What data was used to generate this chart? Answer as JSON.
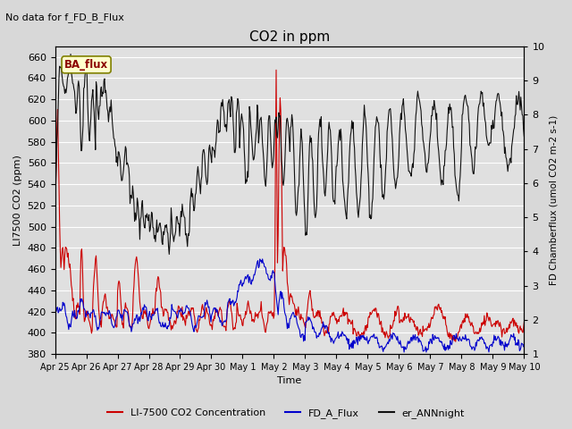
{
  "title": "CO2 in ppm",
  "no_data_text": "No data for f_FD_B_Flux",
  "ba_flux_label": "BA_flux",
  "ylabel_left": "LI7500 CO2 (ppm)",
  "ylabel_right": "FD Chamberflux (umol CO2 m-2 s-1)",
  "xlabel": "Time",
  "ylim_left": [
    380,
    670
  ],
  "ylim_right": [
    1.0,
    10.0
  ],
  "yticks_left": [
    380,
    400,
    420,
    440,
    460,
    480,
    500,
    520,
    540,
    560,
    580,
    600,
    620,
    640,
    660
  ],
  "yticks_right": [
    1.0,
    2.0,
    3.0,
    4.0,
    5.0,
    6.0,
    7.0,
    8.0,
    9.0,
    10.0
  ],
  "xtick_labels": [
    "Apr 25",
    "Apr 26",
    "Apr 27",
    "Apr 28",
    "Apr 29",
    "Apr 30",
    "May 1",
    "May 2",
    "May 3",
    "May 4",
    "May 5",
    "May 6",
    "May 7",
    "May 8",
    "May 9",
    "May 10"
  ],
  "legend_entries": [
    "LI-7500 CO2 Concentration",
    "FD_A_Flux",
    "er_ANNnight"
  ],
  "background_color": "#e0e0e0",
  "grid_color": "#ffffff",
  "fig_color": "#d8d8d8",
  "red_color": "#cc0000",
  "blue_color": "#0000cc",
  "black_color": "#111111",
  "n_points": 720
}
